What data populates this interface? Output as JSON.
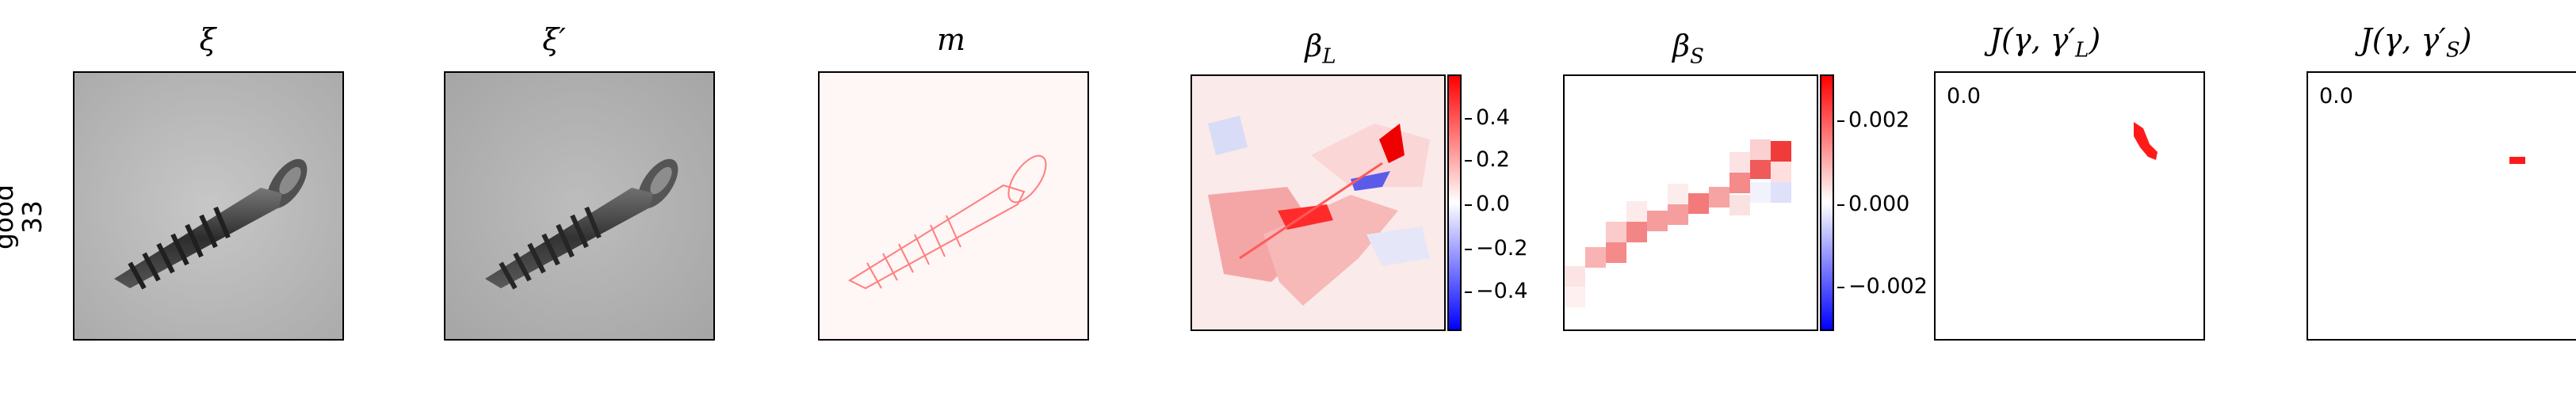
{
  "row_label": {
    "line1": "good",
    "line2": "33"
  },
  "panels": [
    {
      "title": "ξ"
    },
    {
      "title": "ξ′"
    },
    {
      "title": "m"
    },
    {
      "title": "β",
      "sub": "L"
    },
    {
      "title": "β",
      "sub": "S"
    },
    {
      "title_plain": "J(γ, γ′",
      "sub": "L",
      "close": ")",
      "value": "0.0"
    },
    {
      "title_plain": "J(γ, γ′",
      "sub": "S",
      "close": ")",
      "value": "0.0"
    }
  ],
  "colorbar_L": {
    "ticks": [
      "0.4",
      "0.2",
      "0.0",
      "−0.2",
      "−0.4"
    ],
    "low_color": "#0000ff",
    "mid_color": "#ffffff",
    "high_color": "#ff0000"
  },
  "colorbar_S": {
    "ticks": [
      "0.002",
      "0.000",
      "−0.002"
    ],
    "low_color": "#0000ff",
    "mid_color": "#ffffff",
    "high_color": "#ff0000"
  },
  "colors": {
    "highlight": "#ff0000",
    "negative": "#0000ff"
  },
  "icons": {
    "screw": "screw-image"
  }
}
